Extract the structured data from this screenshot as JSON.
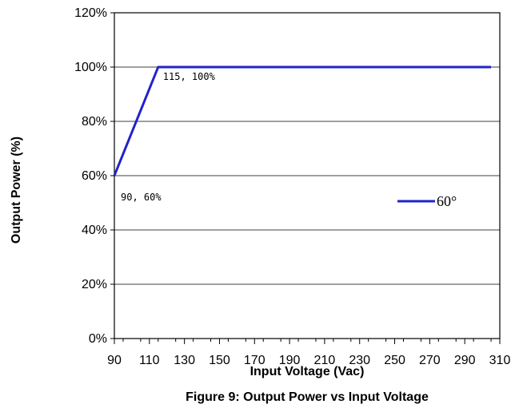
{
  "chart_data": {
    "type": "line",
    "xlabel": "Input Voltage (Vac)",
    "ylabel": "Output Power (%)",
    "xlim": [
      90,
      310
    ],
    "ylim": [
      0,
      120
    ],
    "x_ticks": [
      90,
      110,
      130,
      150,
      170,
      190,
      210,
      230,
      250,
      270,
      290,
      310
    ],
    "y_ticks": [
      0,
      20,
      40,
      60,
      80,
      100,
      120
    ],
    "y_tick_labels": [
      "0%",
      "20%",
      "40%",
      "60%",
      "80%",
      "100%",
      "120%"
    ],
    "grid": "horizontal",
    "series": [
      {
        "name": "60°",
        "color": "#2222cc",
        "points": [
          [
            90,
            60
          ],
          [
            115,
            100
          ],
          [
            305,
            100
          ]
        ]
      }
    ],
    "annotations": [
      {
        "text": "115, 100%",
        "x": 115,
        "y": 100
      },
      {
        "text": "90, 60%",
        "x": 90,
        "y": 60
      }
    ],
    "legend_position": "right",
    "caption": "Figure 9: Output Power vs Input Voltage"
  }
}
